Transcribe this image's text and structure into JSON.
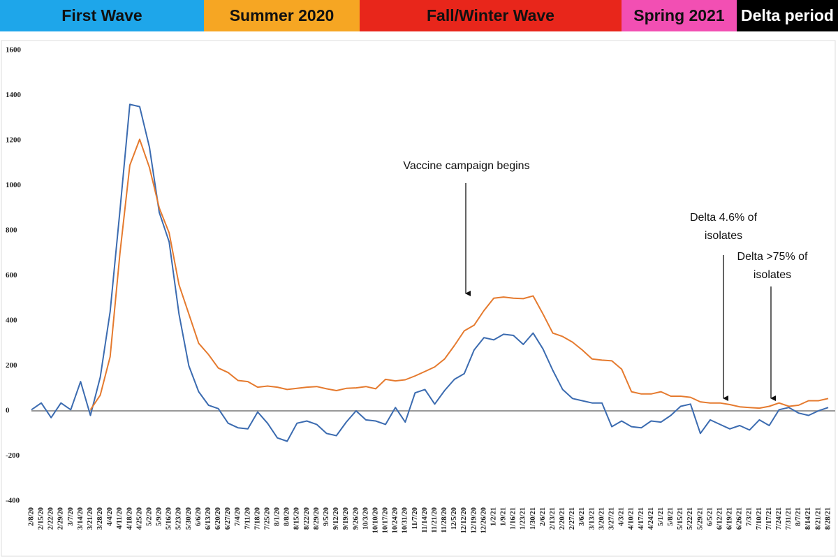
{
  "chart_data": {
    "type": "line",
    "periods": [
      {
        "label": "First Wave",
        "color": "#1ea6ea"
      },
      {
        "label": "Summer 2020",
        "color": "#f6a623"
      },
      {
        "label": "Fall/Winter Wave",
        "color": "#e8261b"
      },
      {
        "label": "Spring 2021",
        "color": "#f24fb3"
      },
      {
        "label": "Delta period",
        "color": "#000000"
      }
    ],
    "annotations": [
      {
        "lines": [
          "Vaccine campaign begins"
        ]
      },
      {
        "lines": [
          "Delta 4.6% of",
          "isolates"
        ]
      },
      {
        "lines": [
          "Delta >75% of",
          "isolates"
        ]
      }
    ],
    "categories": [
      "2/8/20",
      "2/15/20",
      "2/22/20",
      "2/29/20",
      "3/7/20",
      "3/14/20",
      "3/21/20",
      "3/28/20",
      "4/4/20",
      "4/11/20",
      "4/18/20",
      "4/25/20",
      "5/2/20",
      "5/9/20",
      "5/16/20",
      "5/23/20",
      "5/30/20",
      "6/6/20",
      "6/13/20",
      "6/20/20",
      "6/27/20",
      "7/4/20",
      "7/11/20",
      "7/18/20",
      "7/25/20",
      "8/1/20",
      "8/8/20",
      "8/15/20",
      "8/22/20",
      "8/29/20",
      "9/5/20",
      "9/12/20",
      "9/19/20",
      "9/26/20",
      "10/3/20",
      "10/10/20",
      "10/17/20",
      "10/24/20",
      "10/31/20",
      "11/7/20",
      "11/14/20",
      "11/21/20",
      "11/28/20",
      "12/5/20",
      "12/12/20",
      "12/19/20",
      "12/26/20",
      "1/2/21",
      "1/9/21",
      "1/16/21",
      "1/23/21",
      "1/30/21",
      "2/6/21",
      "2/13/21",
      "2/20/21",
      "2/27/21",
      "3/6/21",
      "3/13/21",
      "3/20/21",
      "3/27/21",
      "4/3/21",
      "4/10/21",
      "4/17/21",
      "4/24/21",
      "5/1/21",
      "5/8/21",
      "5/15/21",
      "5/22/21",
      "5/29/21",
      "6/5/21",
      "6/12/21",
      "6/19/21",
      "6/26/21",
      "7/3/21",
      "7/10/21",
      "7/17/21",
      "7/24/21",
      "7/31/21",
      "8/7/21",
      "8/14/21",
      "8/21/21",
      "8/28/21"
    ],
    "series": [
      {
        "color": "#3b6bb0",
        "values": [
          5,
          35,
          -30,
          35,
          5,
          130,
          -20,
          150,
          440,
          890,
          1360,
          1350,
          1170,
          880,
          750,
          430,
          200,
          85,
          25,
          10,
          -55,
          -75,
          -80,
          -5,
          -55,
          -120,
          -135,
          -55,
          -45,
          -60,
          -100,
          -110,
          -50,
          0,
          -40,
          -45,
          -60,
          15,
          -50,
          80,
          95,
          30,
          90,
          140,
          165,
          270,
          325,
          315,
          340,
          335,
          295,
          345,
          275,
          180,
          95,
          55,
          45,
          35,
          35,
          -70,
          -45,
          -70,
          -75,
          -45,
          -50,
          -20,
          20,
          30,
          -100,
          -40,
          -60,
          -80,
          -65,
          -85,
          -40,
          -65,
          5,
          15,
          -10,
          -20,
          0,
          15
        ]
      },
      {
        "color": "#e57a2e",
        "values": [
          null,
          null,
          null,
          null,
          null,
          null,
          5,
          70,
          240,
          700,
          1090,
          1205,
          1080,
          900,
          790,
          560,
          430,
          300,
          250,
          190,
          170,
          135,
          130,
          105,
          110,
          105,
          95,
          100,
          105,
          108,
          98,
          90,
          100,
          102,
          108,
          98,
          140,
          133,
          138,
          155,
          175,
          195,
          230,
          290,
          355,
          380,
          445,
          500,
          505,
          500,
          498,
          510,
          430,
          345,
          330,
          305,
          270,
          230,
          225,
          222,
          185,
          85,
          75,
          75,
          85,
          65,
          65,
          60,
          40,
          35,
          35,
          28,
          18,
          15,
          12,
          20,
          35,
          20,
          25,
          45,
          45,
          55
        ]
      }
    ],
    "ylim": [
      -400,
      1600
    ],
    "yticks": [
      -400,
      -200,
      0,
      200,
      400,
      600,
      800,
      1000,
      1200,
      1400,
      1600
    ]
  }
}
